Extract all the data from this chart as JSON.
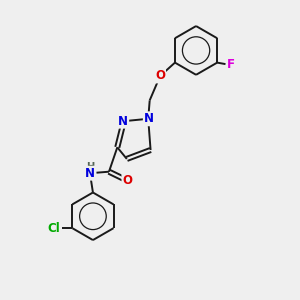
{
  "background_color": "#efefef",
  "bond_color": "#1a1a1a",
  "atom_colors": {
    "N": "#0000dd",
    "O": "#dd0000",
    "F": "#dd00dd",
    "Cl": "#00aa00",
    "H": "#666666"
  },
  "figsize": [
    3.0,
    3.0
  ],
  "dpi": 100,
  "xlim": [
    0,
    10
  ],
  "ylim": [
    0,
    10
  ],
  "font_size": 8.5,
  "lw": 1.4
}
